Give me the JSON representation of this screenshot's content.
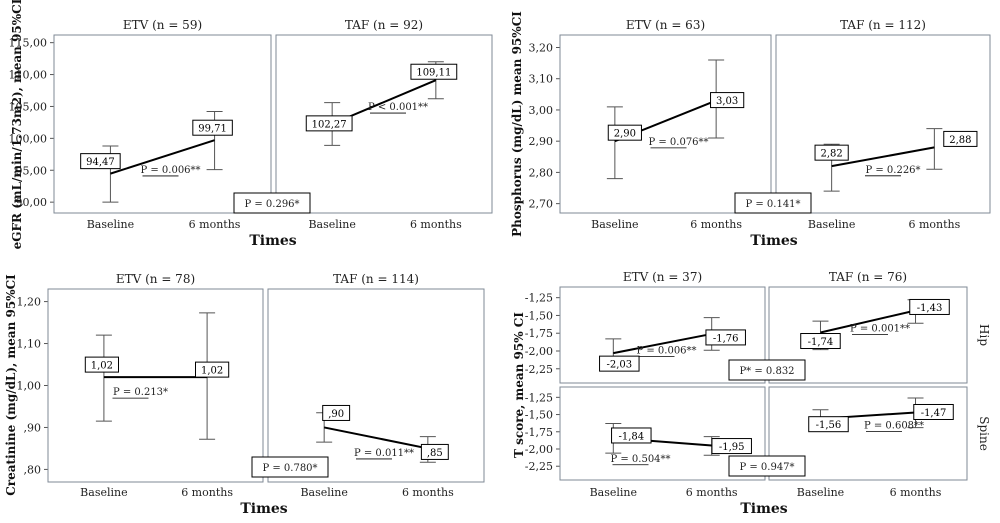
{
  "chart_data": [
    {
      "type": "line",
      "ylabel": "eGFR (mL/min/1.73m2), mean 95%CI",
      "xlabel": "Times",
      "yticks": [
        "115,00",
        "110,00",
        "105,00",
        "100,00",
        "95,00",
        "90,00"
      ],
      "ylim": [
        88.3,
        116.2
      ],
      "panels": [
        {
          "title": "ETV (n = 59)",
          "x": [
            "Baseline",
            "6 months"
          ],
          "means": [
            94.47,
            99.71
          ],
          "ci_low": [
            90.0,
            95.1
          ],
          "ci_high": [
            98.8,
            104.2
          ],
          "value_labels": [
            "94,47",
            "99,71"
          ],
          "p_label": "P = 0.006**"
        },
        {
          "title": "TAF (n = 92)",
          "x": [
            "Baseline",
            "6 months"
          ],
          "means": [
            102.27,
            109.11
          ],
          "ci_low": [
            98.9,
            106.2
          ],
          "ci_high": [
            105.6,
            112.0
          ],
          "value_labels": [
            "102,27",
            "109,11"
          ],
          "p_label": "P < 0.001**"
        }
      ],
      "between_p": "P = 0.296*"
    },
    {
      "type": "line",
      "ylabel": "Phosphorus (mg/dL) mean 95%CI",
      "xlabel": "Times",
      "yticks": [
        "3,20",
        "3,10",
        "3,00",
        "2,90",
        "2,80",
        "2,70"
      ],
      "ylim": [
        2.67,
        3.24
      ],
      "panels": [
        {
          "title": "ETV (n = 63)",
          "x": [
            "Baseline",
            "6 months"
          ],
          "means": [
            2.9,
            3.03
          ],
          "ci_low": [
            2.78,
            2.91
          ],
          "ci_high": [
            3.01,
            3.16
          ],
          "value_labels": [
            "2,90",
            "3,03"
          ],
          "p_label": "P = 0.076**"
        },
        {
          "title": "TAF (n = 112)",
          "x": [
            "Baseline",
            "6 months"
          ],
          "means": [
            2.82,
            2.88
          ],
          "ci_low": [
            2.74,
            2.81
          ],
          "ci_high": [
            2.89,
            2.94
          ],
          "value_labels": [
            "2,82",
            "2,88"
          ],
          "p_label": "P = 0.226*"
        }
      ],
      "between_p": "P = 0.141*"
    },
    {
      "type": "line",
      "ylabel": "Creatinine (mg/dL), mean 95%CI",
      "xlabel": "Times",
      "yticks": [
        "1,20",
        "1,10",
        "1,00",
        ",90",
        ",80"
      ],
      "ylim": [
        0.77,
        1.23
      ],
      "panels": [
        {
          "title": "ETV (n = 78)",
          "x": [
            "Baseline",
            "6 months"
          ],
          "means": [
            1.02,
            1.02
          ],
          "ci_low": [
            0.915,
            0.872
          ],
          "ci_high": [
            1.12,
            1.173
          ],
          "value_labels": [
            "1,02",
            "1,02"
          ],
          "p_label": "P = 0.213*"
        },
        {
          "title": "TAF (n = 114)",
          "x": [
            "Baseline",
            "6 months"
          ],
          "means": [
            0.9,
            0.85
          ],
          "ci_low": [
            0.865,
            0.817
          ],
          "ci_high": [
            0.935,
            0.878
          ],
          "value_labels": [
            ",90",
            ",85"
          ],
          "p_label": "P = 0.011**"
        }
      ],
      "between_p": "P = 0.780*"
    },
    {
      "type": "line",
      "ylabel": "T score, mean 95% CI",
      "xlabel": "Times",
      "yticks": [
        "-1,25",
        "-1,50",
        "-1,75",
        "-2,00",
        "-2,25"
      ],
      "ylim": [
        -2.45,
        -1.1
      ],
      "rows": [
        {
          "side_label": "Hip",
          "panels": [
            {
              "title": "ETV (n = 37)",
              "x": [
                "Baseline",
                "6 months"
              ],
              "means": [
                -2.03,
                -1.76
              ],
              "ci_low": [
                -2.25,
                -1.99
              ],
              "ci_high": [
                -1.83,
                -1.53
              ],
              "value_labels": [
                "-2,03",
                "-1,76"
              ],
              "p_label": "P = 0.006**"
            },
            {
              "title": "TAF (n = 76)",
              "x": [
                "Baseline",
                "6 months"
              ],
              "means": [
                -1.74,
                -1.43
              ],
              "ci_low": [
                -1.98,
                -1.61
              ],
              "ci_high": [
                -1.58,
                -1.28
              ],
              "value_labels": [
                "-1,74",
                "-1,43"
              ],
              "p_label": "P = 0.001**"
            }
          ],
          "between_p": "P* = 0.832"
        },
        {
          "side_label": "Spine",
          "panels": [
            {
              "title": "",
              "x": [
                "Baseline",
                "6 months"
              ],
              "means": [
                -1.84,
                -1.95
              ],
              "ci_low": [
                -2.06,
                -2.09
              ],
              "ci_high": [
                -1.63,
                -1.82
              ],
              "value_labels": [
                "-1,84",
                "-1,95"
              ],
              "p_label": "P = 0.504**"
            },
            {
              "title": "",
              "x": [
                "Baseline",
                "6 months"
              ],
              "means": [
                -1.56,
                -1.47
              ],
              "ci_low": [
                -1.71,
                -1.69
              ],
              "ci_high": [
                -1.43,
                -1.26
              ],
              "value_labels": [
                "-1,56",
                "-1,47"
              ],
              "p_label": "P = 0.608**"
            }
          ],
          "between_p": "P = 0.947*"
        }
      ]
    }
  ]
}
